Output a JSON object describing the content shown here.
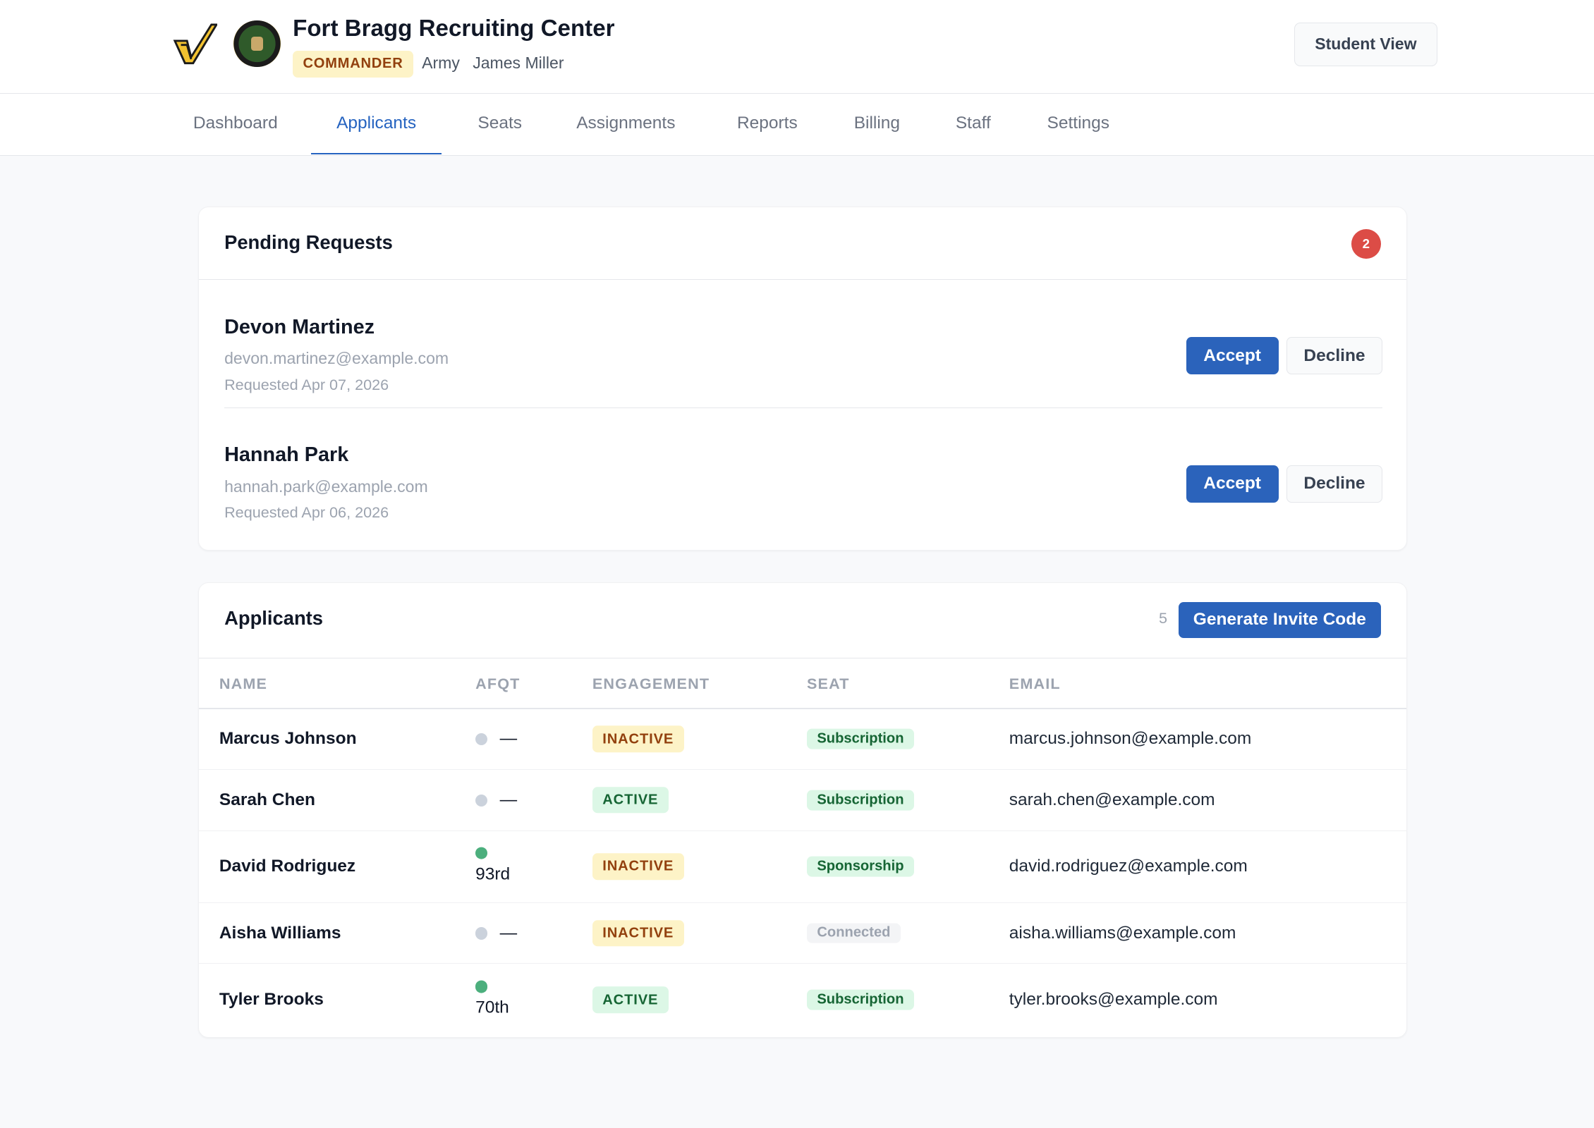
{
  "header": {
    "title": "Fort Bragg Recruiting Center",
    "role": "COMMANDER",
    "branch": "Army",
    "user": "James Miller",
    "student_view": "Student View",
    "logo_icon": "checkmark-logo",
    "seal_icon": "us-army-seal"
  },
  "nav": {
    "tabs": [
      {
        "label": "Dashboard"
      },
      {
        "label": "Applicants",
        "active": true
      },
      {
        "label": "Seats"
      },
      {
        "label": "Assignments"
      },
      {
        "label": "Reports"
      },
      {
        "label": "Billing"
      },
      {
        "label": "Staff"
      },
      {
        "label": "Settings"
      }
    ]
  },
  "pending": {
    "title": "Pending Requests",
    "count": "2",
    "accept_label": "Accept",
    "decline_label": "Decline",
    "requests": [
      {
        "name": "Devon Martinez",
        "email": "devon.martinez@example.com",
        "requested": "Requested Apr 07, 2026"
      },
      {
        "name": "Hannah Park",
        "email": "hannah.park@example.com",
        "requested": "Requested Apr 06, 2026"
      }
    ]
  },
  "applicants": {
    "title": "Applicants",
    "count": "5",
    "generate_label": "Generate Invite Code",
    "columns": [
      "NAME",
      "AFQT",
      "ENGAGEMENT",
      "SEAT",
      "EMAIL"
    ],
    "rows": [
      {
        "name": "Marcus Johnson",
        "afqt": "—",
        "afqt_status": "none",
        "engagement": "INACTIVE",
        "seat": "Subscription",
        "email": "marcus.johnson@example.com"
      },
      {
        "name": "Sarah Chen",
        "afqt": "—",
        "afqt_status": "none",
        "engagement": "ACTIVE",
        "seat": "Subscription",
        "email": "sarah.chen@example.com"
      },
      {
        "name": "David Rodriguez",
        "afqt": "93rd",
        "afqt_status": "scored",
        "engagement": "INACTIVE",
        "seat": "Sponsorship",
        "email": "david.rodriguez@example.com"
      },
      {
        "name": "Aisha Williams",
        "afqt": "—",
        "afqt_status": "none",
        "engagement": "INACTIVE",
        "seat": "Connected",
        "email": "aisha.williams@example.com"
      },
      {
        "name": "Tyler Brooks",
        "afqt": "70th",
        "afqt_status": "scored",
        "engagement": "ACTIVE",
        "seat": "Subscription",
        "email": "tyler.brooks@example.com"
      }
    ]
  },
  "colors": {
    "accent": "#2b63bb",
    "danger": "#dc4c46",
    "inactive_bg": "#fdf3c7",
    "inactive_fg": "#92400e",
    "active_bg": "#dcf7e6",
    "active_fg": "#166534",
    "connected_bg": "#f3f4f6",
    "connected_fg": "#9ca3af",
    "dot_scored": "#4caf7d",
    "dot_none": "#cbd2dc"
  }
}
